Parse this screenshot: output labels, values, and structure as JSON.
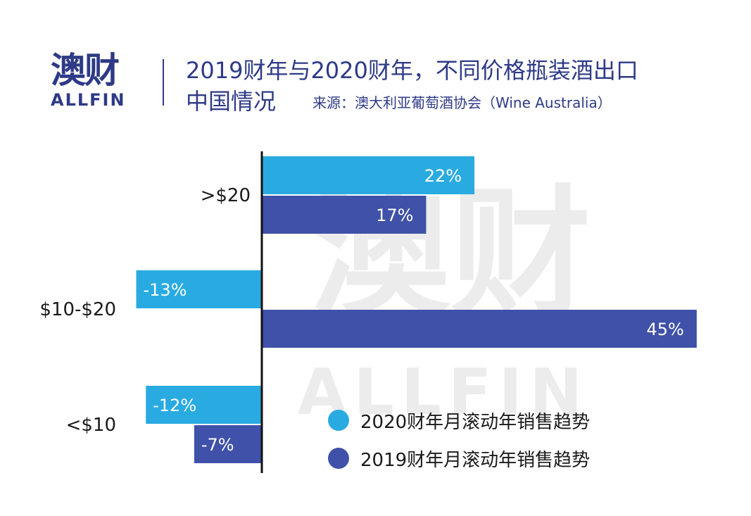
{
  "logo": {
    "cn": "澳财",
    "en": "ALLFIN"
  },
  "title": {
    "line1": "2019财年与2020财年，不同价格瓶装酒出口",
    "line2": "中国情况",
    "source": "来源：澳大利亚葡萄酒协会（Wine Australia）"
  },
  "watermark": {
    "cn": "澳财",
    "en": "ALLFIN"
  },
  "colors": {
    "brand": "#2e3a87",
    "series2020": "#29abe2",
    "series2019": "#3f51a8"
  },
  "chart_data": {
    "type": "bar",
    "orientation": "horizontal",
    "categories": [
      ">$20",
      "$10-$20",
      "<$10"
    ],
    "series": [
      {
        "name": "2020财年月滚动年销售趋势",
        "values": [
          22,
          -13,
          -12
        ],
        "labels": [
          "22%",
          "-13%",
          "-12%"
        ],
        "color": "#29abe2"
      },
      {
        "name": "2019财年月滚动年销售趋势",
        "values": [
          17,
          45,
          -7
        ],
        "labels": [
          "17%",
          "45%",
          "-7%"
        ],
        "color": "#3f51a8"
      }
    ],
    "unit": "%",
    "legend": "bottom-right",
    "grid": false
  }
}
